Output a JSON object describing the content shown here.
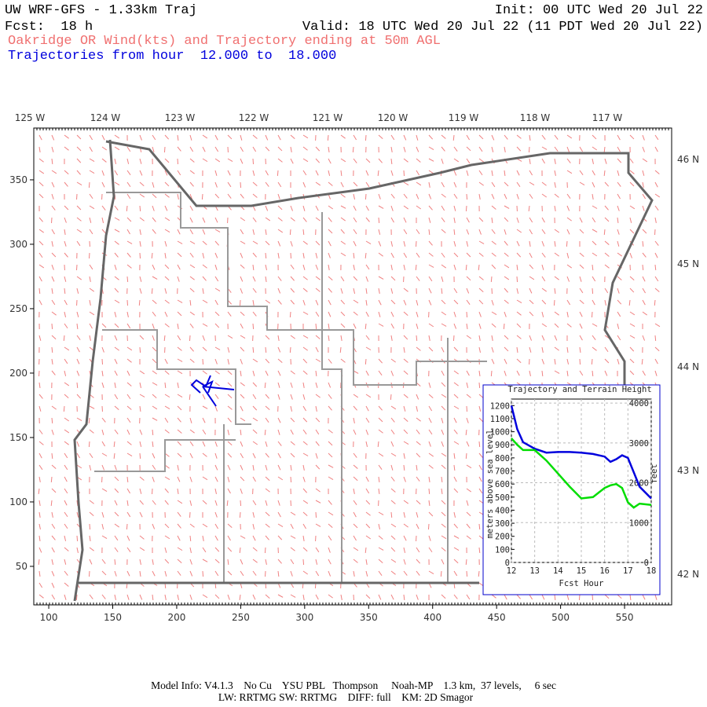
{
  "header": {
    "line1_left": "UW WRF-GFS - 1.33km Traj",
    "line1_right": "Init: 00 UTC Wed 20 Jul 22",
    "line2_left": "Fcst:  18 h",
    "line2_right": "Valid: 18 UTC Wed 20 Jul 22 (11 PDT Wed 20 Jul 22)",
    "subtitle": "Oakridge OR Wind(kts) and Trajectory ending at 50m AGL",
    "trajectories": "Trajectories from hour  12.000 to  18.000"
  },
  "map": {
    "xlim": [
      88.3,
      586.8
    ],
    "xticks": [
      100,
      150,
      200,
      250,
      300,
      350,
      400,
      450,
      500,
      550
    ],
    "ylim": [
      20.1,
      390.2
    ],
    "yticks": [
      50,
      100,
      150,
      200,
      250,
      300,
      350
    ],
    "lon_labels": [
      "125 W",
      "124 W",
      "123 W",
      "122 W",
      "121 W",
      "120 W",
      "119 W",
      "118 W",
      "117 W"
    ],
    "lat_labels": [
      "46 N",
      "45 N",
      "44 N",
      "43 N",
      "42 N"
    ]
  },
  "chart_data": {
    "type": "line",
    "title": "Trajectory and Terrain Height",
    "x_label": "Fcst Hour",
    "y_label": "meters above sea level",
    "y2_label": "feet",
    "x": [
      12,
      12.25,
      12.5,
      13,
      13.5,
      14,
      14.5,
      15,
      15.5,
      16,
      16.25,
      16.5,
      16.75,
      17,
      17.25,
      17.5,
      18
    ],
    "xlim": [
      12,
      18
    ],
    "xticks": [
      12,
      13,
      14,
      15,
      16,
      17,
      18
    ],
    "ylim": [
      0,
      1250
    ],
    "yticks": [
      0,
      100,
      200,
      300,
      400,
      500,
      600,
      700,
      800,
      900,
      1000,
      1100,
      1200
    ],
    "y2lim": [
      0,
      4101
    ],
    "y2ticks": [
      0,
      1000,
      2000,
      3000,
      4000
    ],
    "grid": true,
    "series": [
      {
        "color": "#0000dd",
        "values": [
          1200,
          1020,
          920,
          870,
          840,
          845,
          845,
          840,
          830,
          810,
          770,
          790,
          820,
          800,
          690,
          580,
          490
        ]
      },
      {
        "color": "#00dd00",
        "values": [
          950,
          900,
          860,
          860,
          780,
          680,
          580,
          490,
          500,
          570,
          590,
          600,
          570,
          460,
          420,
          450,
          440
        ]
      }
    ]
  },
  "footer": {
    "line1": "Model Info: V4.1.3    No Cu    YSU PBL   Thompson     Noah-MP    1.3 km,  37 levels,     6 sec",
    "line2": "LW: RRTMG SW: RRTMG    DIFF: full    KM: 2D Smagor"
  }
}
